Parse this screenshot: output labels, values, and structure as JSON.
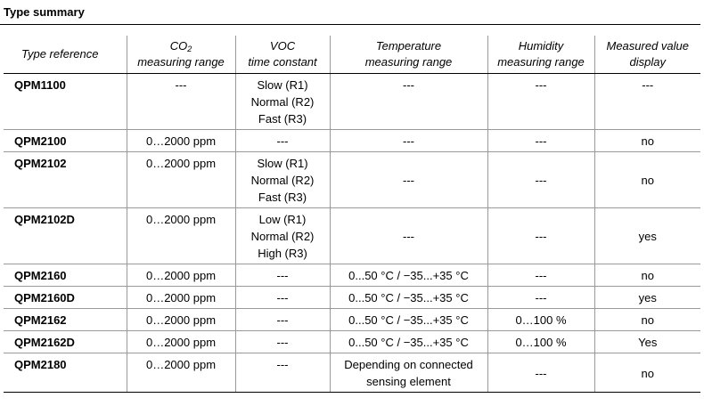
{
  "title": "Type summary",
  "headers": {
    "type_reference": "Type reference",
    "co2_prefix": "CO",
    "co2_sub": "2",
    "co2_line2": "measuring range",
    "voc_line1": "VOC",
    "voc_line2": "time constant",
    "temp_line1": "Temperature",
    "temp_line2": "measuring range",
    "hum_line1": "Humidity",
    "hum_line2": "measuring range",
    "display_line1": "Measured value",
    "display_line2": "display"
  },
  "rows": [
    {
      "type": "QPM1100",
      "co2": "---",
      "voc": [
        "Slow (R1)",
        "Normal (R2)",
        "Fast (R3)"
      ],
      "temperature": [
        "---"
      ],
      "humidity": "---",
      "display": "---"
    },
    {
      "type": "QPM2100",
      "co2": "0…2000 ppm",
      "voc": [
        "---"
      ],
      "temperature": [
        "---"
      ],
      "humidity": "---",
      "display": "no"
    },
    {
      "type": "QPM2102",
      "co2": "0…2000 ppm",
      "voc": [
        "Slow (R1)",
        "Normal (R2)",
        "Fast (R3)"
      ],
      "temperature": [
        "---"
      ],
      "humidity": "---",
      "display": "no"
    },
    {
      "type": "QPM2102D",
      "co2": "0…2000 ppm",
      "voc": [
        "Low (R1)",
        "Normal (R2)",
        "High (R3)"
      ],
      "temperature": [
        "---"
      ],
      "humidity": "---",
      "display": "yes"
    },
    {
      "type": "QPM2160",
      "co2": "0…2000 ppm",
      "voc": [
        "---"
      ],
      "temperature": [
        "0...50 °C / −35...+35 °C"
      ],
      "humidity": "---",
      "display": "no"
    },
    {
      "type": "QPM2160D",
      "co2": "0…2000 ppm",
      "voc": [
        "---"
      ],
      "temperature": [
        "0...50 °C / −35...+35 °C"
      ],
      "humidity": "---",
      "display": "yes"
    },
    {
      "type": "QPM2162",
      "co2": "0…2000 ppm",
      "voc": [
        "---"
      ],
      "temperature": [
        "0...50 °C / −35...+35 °C"
      ],
      "humidity": "0…100 %",
      "display": "no"
    },
    {
      "type": "QPM2162D",
      "co2": "0…2000 ppm",
      "voc": [
        "---"
      ],
      "temperature": [
        "0...50 °C / −35...+35 °C"
      ],
      "humidity": "0…100 %",
      "display": "Yes"
    },
    {
      "type": "QPM2180",
      "co2": "0…2000 ppm",
      "voc": [
        "---"
      ],
      "temperature": [
        "Depending on connected",
        "sensing element"
      ],
      "humidity": "---",
      "display": "no"
    }
  ]
}
